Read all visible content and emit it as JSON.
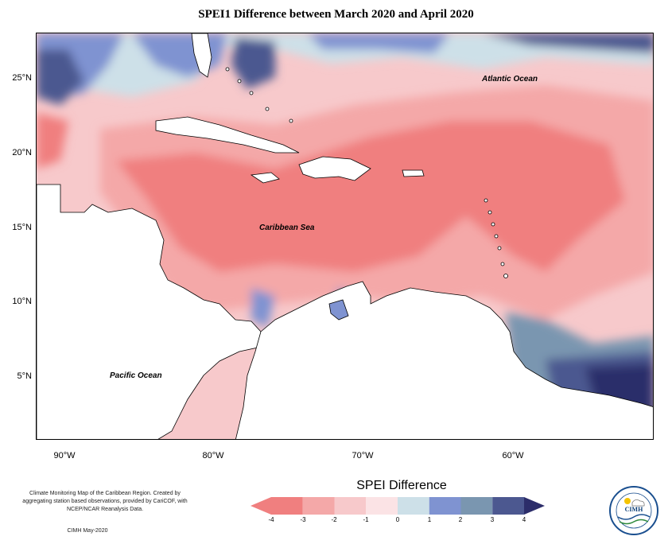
{
  "title": "SPEI1 Difference between March 2020 and April 2020",
  "map": {
    "lat_labels": [
      "25°N",
      "20°N",
      "15°N",
      "10°N",
      "5°N"
    ],
    "lon_labels": [
      "90°W",
      "80°W",
      "70°W",
      "60°W"
    ],
    "ocean_labels": {
      "atlantic": "Atlantic Ocean",
      "caribbean": "Caribbean Sea",
      "pacific": "Pacific Ocean"
    }
  },
  "legend": {
    "title": "SPEI Difference",
    "ticks": [
      "-4",
      "-3",
      "-2",
      "-1",
      "0",
      "1",
      "2",
      "3",
      "4"
    ],
    "colors": [
      "#f07f7f",
      "#f4a8a8",
      "#f7c9cb",
      "#fbe3e5",
      "#cde0e8",
      "#7f93d1",
      "#7a96b0",
      "#4c5890",
      "#2c2d6a"
    ]
  },
  "footnote": "Climate Monitoring Map of the Caribbean Region. Created by aggregating station based observations, provided by CariCOF, with NCEP/NCAR Reanalysis Data.",
  "credit": "CIMH May-2020",
  "logo": {
    "text": "CIMH"
  }
}
